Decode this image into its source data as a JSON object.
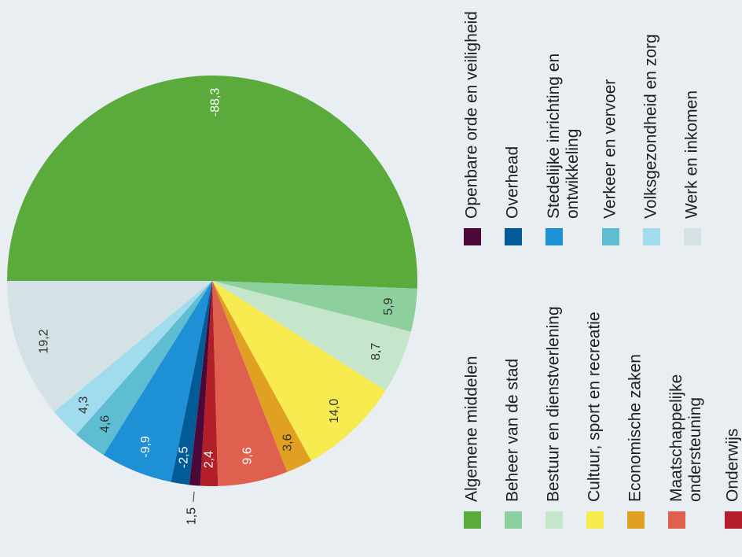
{
  "chart_data": {
    "type": "pie",
    "categories": [
      "Algemene middelen",
      "Beheer van de stad",
      "Bestuur en dienstverlening",
      "Cultuur, sport en recreatie",
      "Economische zaken",
      "Maatschappelijke ondersteuning",
      "Onderwijs",
      "Openbare orde en veiligheid",
      "Overhead",
      "Stedelijke inrichting en ontwikkeling",
      "Verkeer en vervoer",
      "Volksgezondheid en zorg",
      "Werk en inkomen"
    ],
    "values": [
      -88.3,
      5.9,
      8.7,
      14.0,
      3.6,
      9.6,
      2.4,
      1.5,
      -2.5,
      -9.9,
      4.6,
      4.3,
      19.2
    ],
    "value_labels": [
      "-88,3",
      "5,9",
      "8,7",
      "14,0",
      "3,6",
      "9,6",
      "2,4",
      "1,5",
      "-2,5",
      "-9,9",
      "4,6",
      "4,3",
      "19,2"
    ],
    "colors": [
      "#5aab3c",
      "#8ecf9e",
      "#c6e6cc",
      "#f8eb4f",
      "#e0a021",
      "#e0604f",
      "#b21f28",
      "#4b0838",
      "#005b96",
      "#1e91d6",
      "#5ebdd0",
      "#a1dcee",
      "#d4e1e5"
    ]
  }
}
